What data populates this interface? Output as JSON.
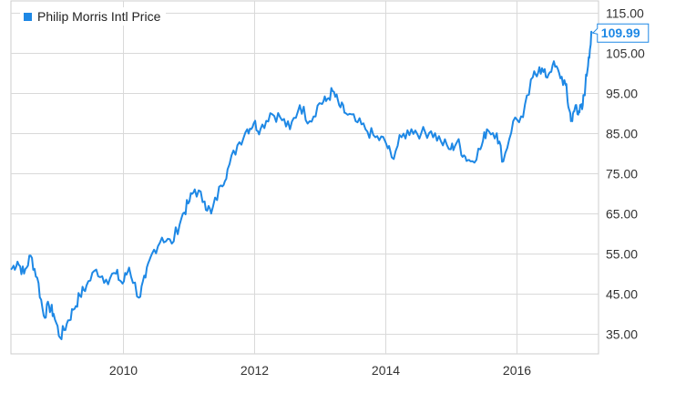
{
  "chart_data": {
    "type": "line",
    "title": "",
    "xlabel": "",
    "ylabel": "",
    "xlim": [
      2008.3,
      2017.25
    ],
    "ylim": [
      30,
      118
    ],
    "x_ticks": [
      2010,
      2012,
      2014,
      2016
    ],
    "x_tick_labels": [
      "2010",
      "2012",
      "2014",
      "2016"
    ],
    "y_ticks": [
      35,
      45,
      55,
      65,
      75,
      85,
      95,
      105,
      115
    ],
    "y_tick_labels": [
      "35.00",
      "45.00",
      "55.00",
      "65.00",
      "75.00",
      "85.00",
      "95.00",
      "105.00",
      "115.00"
    ],
    "grid": true,
    "legend_position": "top-left",
    "last_value_label": "109.99",
    "series": [
      {
        "name": "Philip Morris Intl Price",
        "color": "#1e88e5",
        "x": [
          2008.3,
          2008.4,
          2008.5,
          2008.6,
          2008.7,
          2008.8,
          2008.88,
          2008.95,
          2009.05,
          2009.15,
          2009.25,
          2009.35,
          2009.45,
          2009.6,
          2009.75,
          2009.9,
          2010.0,
          2010.1,
          2010.25,
          2010.35,
          2010.45,
          2010.6,
          2010.75,
          2010.9,
          2011.0,
          2011.1,
          2011.25,
          2011.35,
          2011.5,
          2011.6,
          2011.75,
          2011.9,
          2012.0,
          2012.1,
          2012.25,
          2012.4,
          2012.55,
          2012.7,
          2012.85,
          2013.0,
          2013.1,
          2013.2,
          2013.3,
          2013.4,
          2013.55,
          2013.7,
          2013.85,
          2014.0,
          2014.1,
          2014.25,
          2014.4,
          2014.55,
          2014.7,
          2014.85,
          2015.0,
          2015.1,
          2015.2,
          2015.3,
          2015.45,
          2015.55,
          2015.7,
          2015.8,
          2015.95,
          2016.1,
          2016.25,
          2016.35,
          2016.45,
          2016.55,
          2016.65,
          2016.75,
          2016.8,
          2016.85,
          2016.9,
          2016.95,
          2017.0,
          2017.05,
          2017.1,
          2017.15
        ],
        "values": [
          51.0,
          53.0,
          50.0,
          54.5,
          49.0,
          39.5,
          42.0,
          40.0,
          34.0,
          37.5,
          41.0,
          44.5,
          47.0,
          51.0,
          48.5,
          50.0,
          47.5,
          51.5,
          44.0,
          49.0,
          55.0,
          59.0,
          57.5,
          64.0,
          67.5,
          71.0,
          68.0,
          65.0,
          72.0,
          76.0,
          82.0,
          86.0,
          87.5,
          86.0,
          90.0,
          89.0,
          86.0,
          92.0,
          88.0,
          92.5,
          93.0,
          95.5,
          92.0,
          90.0,
          88.0,
          86.0,
          84.0,
          83.0,
          79.0,
          84.0,
          86.0,
          85.0,
          85.5,
          83.0,
          81.0,
          83.0,
          79.5,
          78.0,
          81.0,
          86.0,
          85.0,
          78.0,
          88.0,
          89.0,
          99.0,
          101.5,
          99.0,
          102.0,
          100.0,
          97.0,
          91.0,
          88.0,
          92.0,
          90.5,
          91.0,
          97.0,
          104.0,
          109.99
        ]
      }
    ]
  }
}
